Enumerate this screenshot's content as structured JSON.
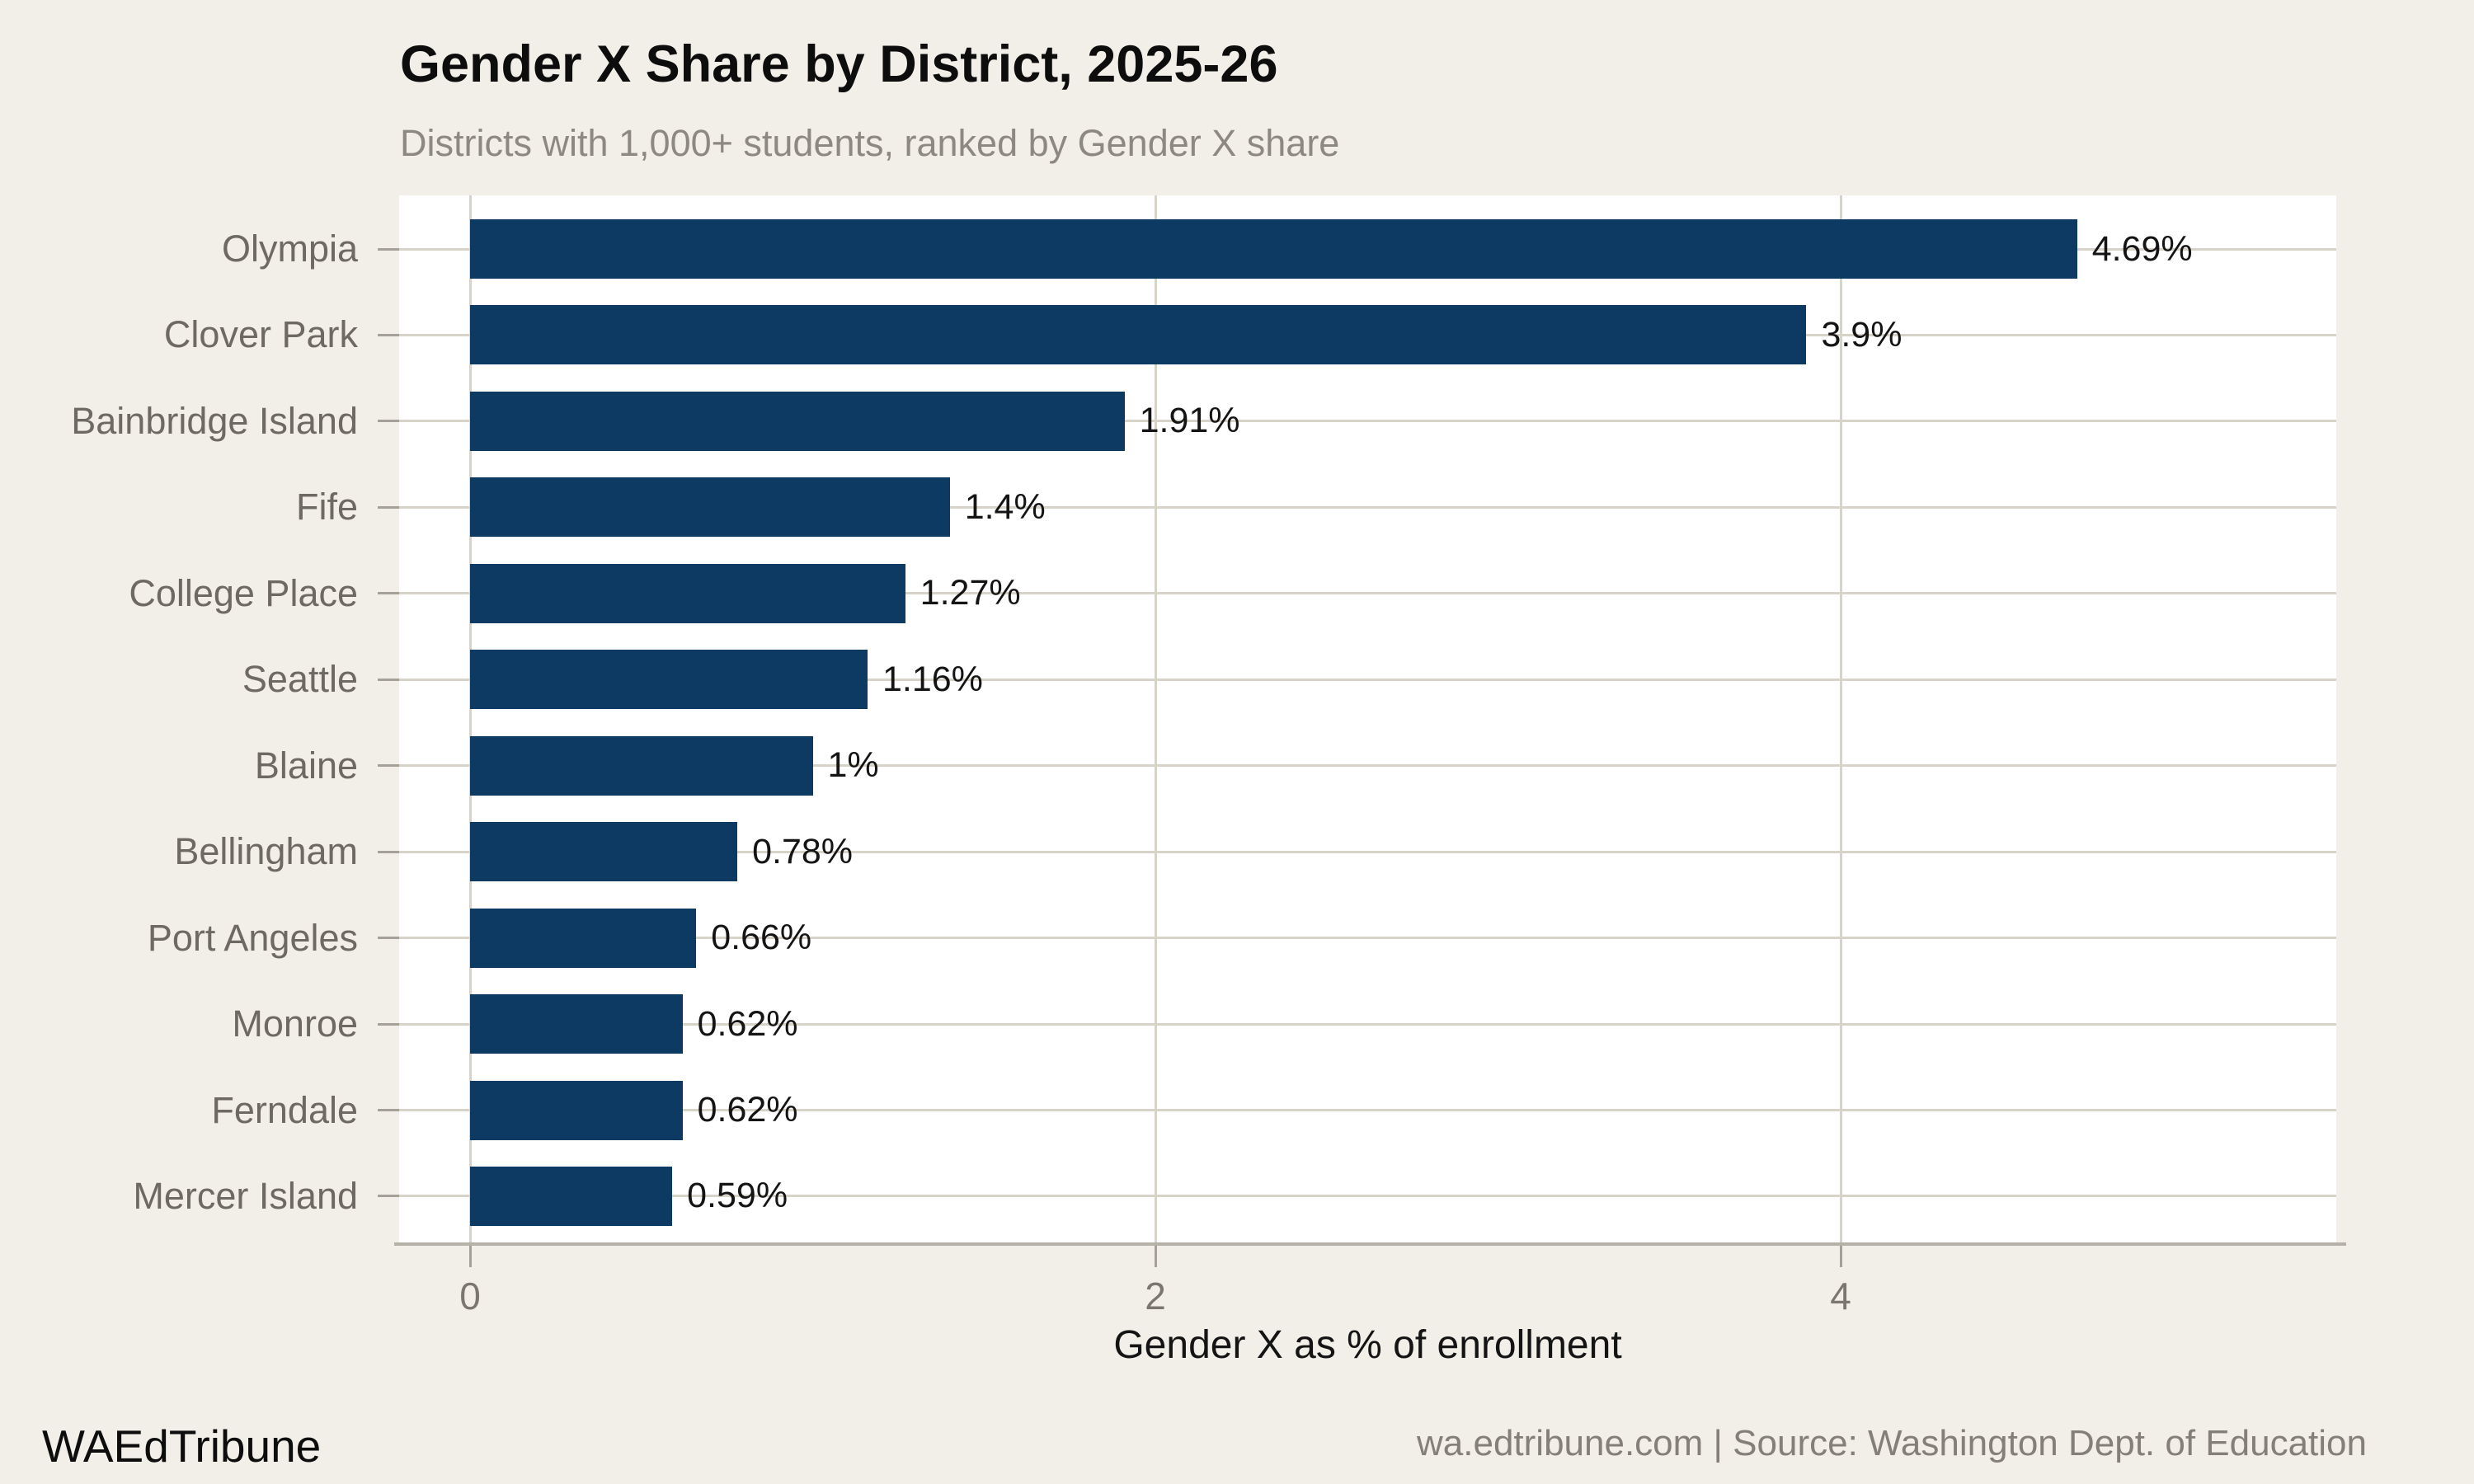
{
  "header": {
    "title": "Gender X Share by District, 2025-26",
    "subtitle": "Districts with 1,000+ students, ranked by Gender X share"
  },
  "chart_data": {
    "type": "bar",
    "orientation": "horizontal",
    "title": "Gender X Share by District, 2025-26",
    "subtitle": "Districts with 1,000+ students, ranked by Gender X share",
    "xlabel": "Gender X as % of enrollment",
    "ylabel": "",
    "categories": [
      "Olympia",
      "Clover Park",
      "Bainbridge Island",
      "Fife",
      "College Place",
      "Seattle",
      "Blaine",
      "Bellingham",
      "Port Angeles",
      "Monroe",
      "Ferndale",
      "Mercer Island"
    ],
    "values": [
      4.69,
      3.9,
      1.91,
      1.4,
      1.27,
      1.16,
      1.0,
      0.78,
      0.66,
      0.62,
      0.62,
      0.59
    ],
    "value_labels": [
      "4.69%",
      "3.9%",
      "1.91%",
      "1.4%",
      "1.27%",
      "1.16%",
      "1%",
      "0.78%",
      "0.66%",
      "0.62%",
      "0.62%",
      "0.59%"
    ],
    "xlim": [
      0,
      5.45
    ],
    "xticks": [
      0,
      2,
      4
    ],
    "xtick_labels": [
      "0",
      "2",
      "4"
    ],
    "grid": "on",
    "legend": "none",
    "bar_color": "#0d3a63"
  },
  "footer": {
    "brand": "WAEdTribune",
    "source": "wa.edtribune.com | Source: Washington Dept. of Education"
  },
  "colors": {
    "background": "#f2efe8",
    "panel": "#ffffff",
    "bar": "#0d3a63",
    "gridline": "#d7d3c9",
    "axis_line": "#b5b1a8",
    "tick": "#a5a198",
    "title_text": "#0d0d0d",
    "muted_text": "#8d8981",
    "axis_text": "#6e6a63",
    "source_text": "#847f77"
  }
}
